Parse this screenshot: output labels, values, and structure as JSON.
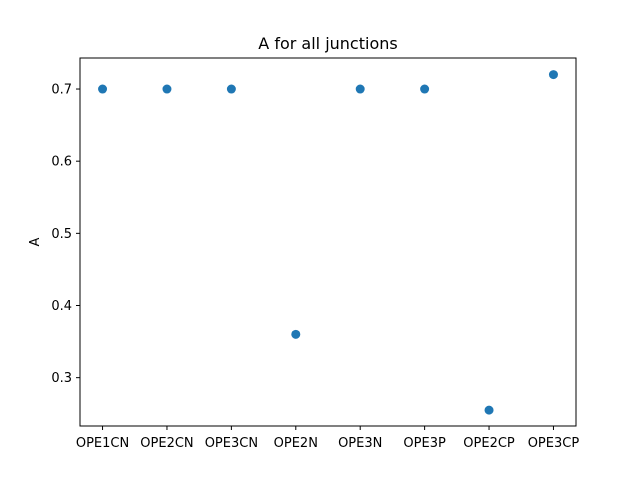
{
  "chart_data": {
    "type": "scatter",
    "title": "A for all junctions",
    "xlabel": "",
    "ylabel": "A",
    "categories": [
      "OPE1CN",
      "OPE2CN",
      "OPE3CN",
      "OPE2N",
      "OPE3N",
      "OPE3P",
      "OPE2CP",
      "OPE3CP"
    ],
    "values": [
      0.7,
      0.7,
      0.7,
      0.36,
      0.7,
      0.7,
      0.255,
      0.72
    ],
    "ylim": [
      0.233,
      0.743
    ],
    "yticks": [
      0.3,
      0.4,
      0.5,
      0.6,
      0.7
    ],
    "ytick_labels": [
      "0.3",
      "0.4",
      "0.5",
      "0.6",
      "0.7"
    ],
    "grid": false,
    "marker_color": "#1f77b4"
  }
}
